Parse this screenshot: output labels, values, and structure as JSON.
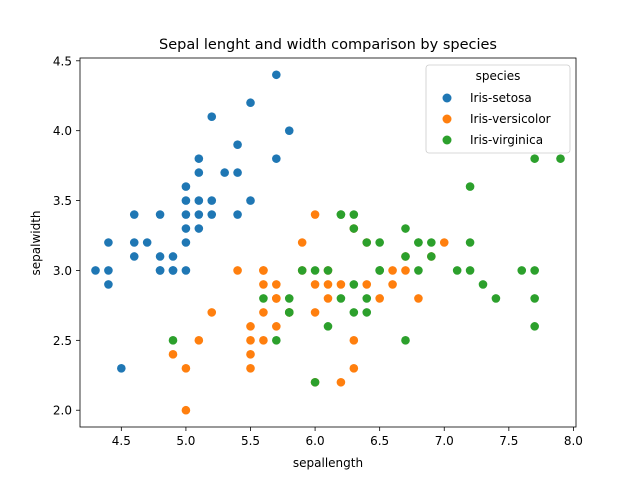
{
  "chart_data": {
    "type": "scatter",
    "title": "Sepal lenght and width comparison by species",
    "xlabel": "sepallength",
    "ylabel": "sepalwidth",
    "xlim": [
      4.18,
      8.02
    ],
    "ylim": [
      1.88,
      4.52
    ],
    "xticks": [
      4.5,
      5.0,
      5.5,
      6.0,
      6.5,
      7.0,
      7.5,
      8.0
    ],
    "xtick_labels": [
      "4.5",
      "5.0",
      "5.5",
      "6.0",
      "6.5",
      "7.0",
      "7.5",
      "8.0"
    ],
    "yticks": [
      2.0,
      2.5,
      3.0,
      3.5,
      4.0,
      4.5
    ],
    "ytick_labels": [
      "2.0",
      "2.5",
      "3.0",
      "3.5",
      "4.0",
      "4.5"
    ],
    "grid": false,
    "legend": {
      "title": "species",
      "placement": "upper-right"
    },
    "series": [
      {
        "name": "Iris-setosa",
        "color": "#1f77b4",
        "points": [
          [
            5.1,
            3.5
          ],
          [
            4.9,
            3.0
          ],
          [
            4.7,
            3.2
          ],
          [
            4.6,
            3.1
          ],
          [
            5.0,
            3.6
          ],
          [
            5.4,
            3.9
          ],
          [
            4.6,
            3.4
          ],
          [
            5.0,
            3.4
          ],
          [
            4.4,
            2.9
          ],
          [
            4.9,
            3.1
          ],
          [
            5.4,
            3.7
          ],
          [
            4.8,
            3.4
          ],
          [
            4.8,
            3.0
          ],
          [
            4.3,
            3.0
          ],
          [
            5.8,
            4.0
          ],
          [
            5.7,
            4.4
          ],
          [
            5.1,
            3.8
          ],
          [
            5.7,
            3.8
          ],
          [
            5.4,
            3.4
          ],
          [
            5.1,
            3.7
          ],
          [
            5.0,
            3.0
          ],
          [
            5.2,
            3.5
          ],
          [
            5.2,
            3.4
          ],
          [
            4.8,
            3.1
          ],
          [
            5.2,
            4.1
          ],
          [
            5.5,
            4.2
          ],
          [
            5.0,
            3.2
          ],
          [
            5.5,
            3.5
          ],
          [
            4.4,
            3.0
          ],
          [
            5.1,
            3.4
          ],
          [
            5.0,
            3.5
          ],
          [
            4.5,
            2.3
          ],
          [
            4.4,
            3.2
          ],
          [
            5.0,
            3.3
          ],
          [
            5.3,
            3.7
          ],
          [
            4.6,
            3.2
          ],
          [
            5.1,
            3.3
          ],
          [
            4.9,
            3.0
          ],
          [
            4.8,
            3.0
          ]
        ]
      },
      {
        "name": "Iris-versicolor",
        "color": "#ff7f0e",
        "points": [
          [
            7.0,
            3.2
          ],
          [
            6.4,
            3.2
          ],
          [
            6.9,
            3.1
          ],
          [
            5.5,
            2.3
          ],
          [
            6.5,
            2.8
          ],
          [
            5.7,
            2.8
          ],
          [
            6.3,
            3.3
          ],
          [
            4.9,
            2.4
          ],
          [
            6.6,
            2.9
          ],
          [
            5.2,
            2.7
          ],
          [
            5.0,
            2.0
          ],
          [
            5.9,
            3.0
          ],
          [
            6.0,
            2.2
          ],
          [
            6.1,
            2.9
          ],
          [
            5.6,
            2.9
          ],
          [
            6.7,
            3.1
          ],
          [
            5.6,
            3.0
          ],
          [
            5.8,
            2.7
          ],
          [
            6.2,
            2.2
          ],
          [
            5.6,
            2.5
          ],
          [
            5.9,
            3.2
          ],
          [
            6.1,
            2.8
          ],
          [
            6.3,
            2.5
          ],
          [
            6.4,
            2.9
          ],
          [
            6.6,
            3.0
          ],
          [
            6.8,
            2.8
          ],
          [
            6.7,
            3.0
          ],
          [
            6.0,
            2.9
          ],
          [
            5.7,
            2.6
          ],
          [
            5.5,
            2.4
          ],
          [
            5.5,
            2.5
          ],
          [
            5.8,
            2.7
          ],
          [
            6.0,
            2.7
          ],
          [
            5.4,
            3.0
          ],
          [
            6.0,
            3.4
          ],
          [
            6.3,
            2.3
          ],
          [
            5.6,
            3.0
          ],
          [
            5.5,
            2.6
          ],
          [
            6.1,
            3.0
          ],
          [
            5.0,
            2.3
          ],
          [
            5.6,
            2.7
          ],
          [
            5.7,
            2.9
          ],
          [
            6.2,
            2.9
          ],
          [
            5.1,
            2.5
          ],
          [
            5.7,
            2.8
          ]
        ]
      },
      {
        "name": "Iris-virginica",
        "color": "#2ca02c",
        "points": [
          [
            6.3,
            3.3
          ],
          [
            5.8,
            2.7
          ],
          [
            7.1,
            3.0
          ],
          [
            6.3,
            2.9
          ],
          [
            6.5,
            3.0
          ],
          [
            7.6,
            3.0
          ],
          [
            4.9,
            2.5
          ],
          [
            7.3,
            2.9
          ],
          [
            6.7,
            2.5
          ],
          [
            7.2,
            3.6
          ],
          [
            6.5,
            3.2
          ],
          [
            6.4,
            2.7
          ],
          [
            6.8,
            3.0
          ],
          [
            5.7,
            2.5
          ],
          [
            5.8,
            2.8
          ],
          [
            6.4,
            3.2
          ],
          [
            7.7,
            3.8
          ],
          [
            7.7,
            2.6
          ],
          [
            6.0,
            2.2
          ],
          [
            6.9,
            3.2
          ],
          [
            5.6,
            2.8
          ],
          [
            7.7,
            2.8
          ],
          [
            6.3,
            2.7
          ],
          [
            6.7,
            3.3
          ],
          [
            7.2,
            3.2
          ],
          [
            6.2,
            2.8
          ],
          [
            6.1,
            3.0
          ],
          [
            6.4,
            2.8
          ],
          [
            7.2,
            3.0
          ],
          [
            7.4,
            2.8
          ],
          [
            7.9,
            3.8
          ],
          [
            6.1,
            2.6
          ],
          [
            7.7,
            3.0
          ],
          [
            6.3,
            3.4
          ],
          [
            6.0,
            3.0
          ],
          [
            6.9,
            3.1
          ],
          [
            6.7,
            3.1
          ],
          [
            5.8,
            2.7
          ],
          [
            6.8,
            3.2
          ],
          [
            6.2,
            3.4
          ],
          [
            5.9,
            3.0
          ],
          [
            6.2,
            3.4
          ],
          [
            6.8,
            3.2
          ],
          [
            6.5,
            3.0
          ]
        ]
      }
    ]
  }
}
